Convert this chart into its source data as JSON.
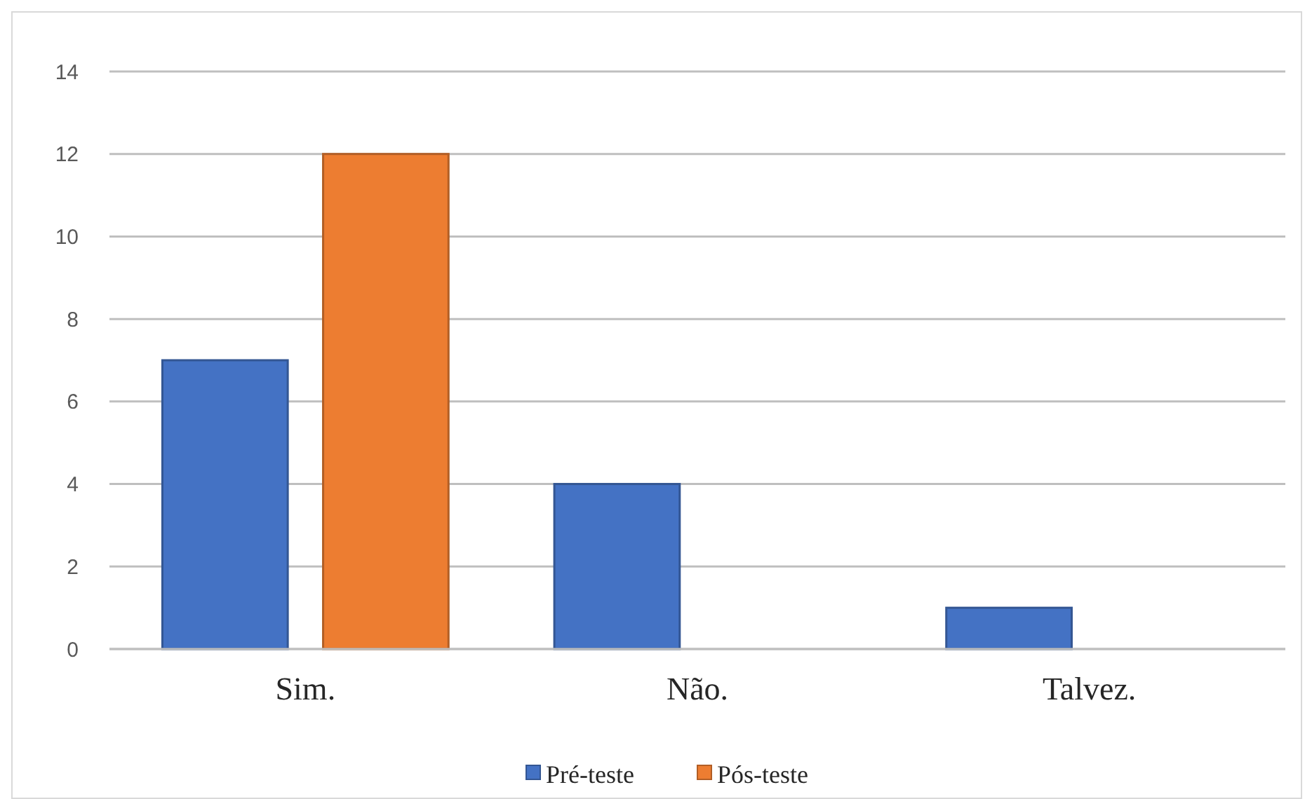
{
  "chart_data": {
    "type": "bar",
    "categories": [
      "Sim.",
      "Não.",
      "Talvez."
    ],
    "series": [
      {
        "name": "Pré-teste",
        "color": "#4472c4",
        "values": [
          7,
          4,
          1
        ]
      },
      {
        "name": "Pós-teste",
        "color": "#ed7d31",
        "values": [
          12,
          0,
          0
        ]
      }
    ],
    "ylim": [
      0,
      14
    ],
    "yticks": [
      0,
      2,
      4,
      6,
      8,
      10,
      12,
      14
    ],
    "grid": "y",
    "legend": "bottom"
  }
}
